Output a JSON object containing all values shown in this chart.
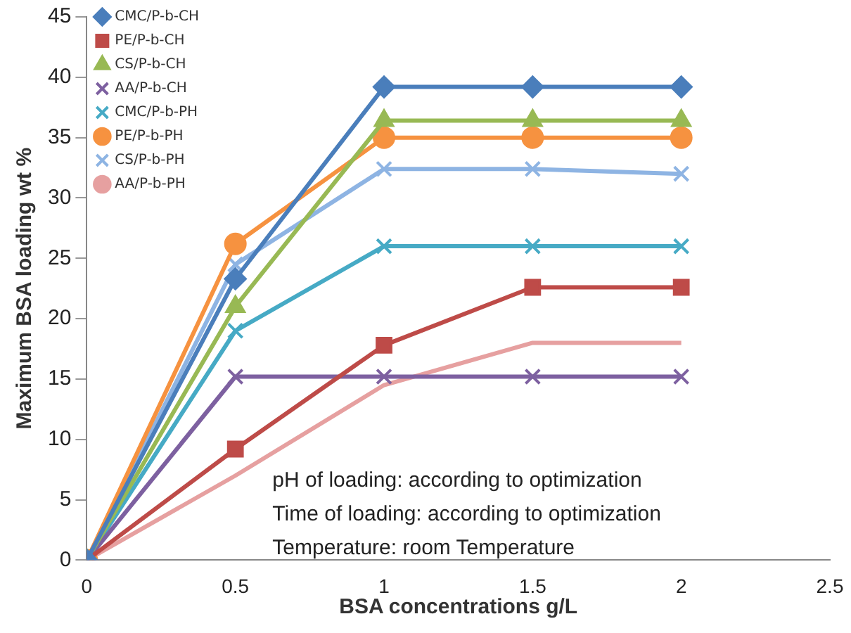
{
  "chart_data": {
    "type": "line",
    "xlabel": "BSA concentrations g/L",
    "ylabel": "Maximum BSA loading wt %",
    "x": [
      0,
      0.5,
      1,
      1.5,
      2
    ],
    "series": [
      {
        "name": "CMC/P-b-CH",
        "color": "#4a7ebb",
        "marker": "diamond",
        "values": [
          0,
          23.3,
          39.2,
          39.2,
          39.2
        ]
      },
      {
        "name": "PE/P-b-CH",
        "color": "#be4b48",
        "marker": "square",
        "values": [
          0,
          9.2,
          17.8,
          22.6,
          22.6
        ]
      },
      {
        "name": "CS/P-b-CH",
        "color": "#98b954",
        "marker": "triangle",
        "values": [
          0,
          21,
          36.4,
          36.4,
          36.4
        ]
      },
      {
        "name": "AA/P-b-CH",
        "color": "#7d60a0",
        "marker": "cross",
        "values": [
          0,
          15.2,
          15.2,
          15.2,
          15.2
        ]
      },
      {
        "name": "CMC/P-b-PH",
        "color": "#46aac5",
        "marker": "cross",
        "values": [
          0,
          19,
          26,
          26,
          26
        ]
      },
      {
        "name": "PE/P-b-PH",
        "color": "#f69240",
        "marker": "circle",
        "values": [
          0,
          26.2,
          35,
          35,
          35
        ]
      },
      {
        "name": "CS/P-b-PH",
        "color": "#8eb4e3",
        "marker": "cross",
        "values": [
          0,
          24.5,
          32.4,
          32.4,
          32
        ]
      },
      {
        "name": "AA/P-b-PH",
        "color": "#e6a0a0",
        "marker": "none",
        "values": [
          0,
          7,
          14.5,
          18,
          18
        ]
      }
    ],
    "xlim": [
      0,
      2.5
    ],
    "xticks": [
      0,
      0.5,
      1,
      1.5,
      2,
      2.5
    ],
    "ylim": [
      0,
      45
    ],
    "yticks": [
      0,
      5,
      10,
      15,
      20,
      25,
      30,
      35,
      40,
      45
    ],
    "grid": false,
    "legend": "top left",
    "line_style": "solid",
    "annotations": [
      "pH of loading: according to optimization",
      "Time of loading: according to optimization",
      "Temperature: room Temperature"
    ]
  }
}
